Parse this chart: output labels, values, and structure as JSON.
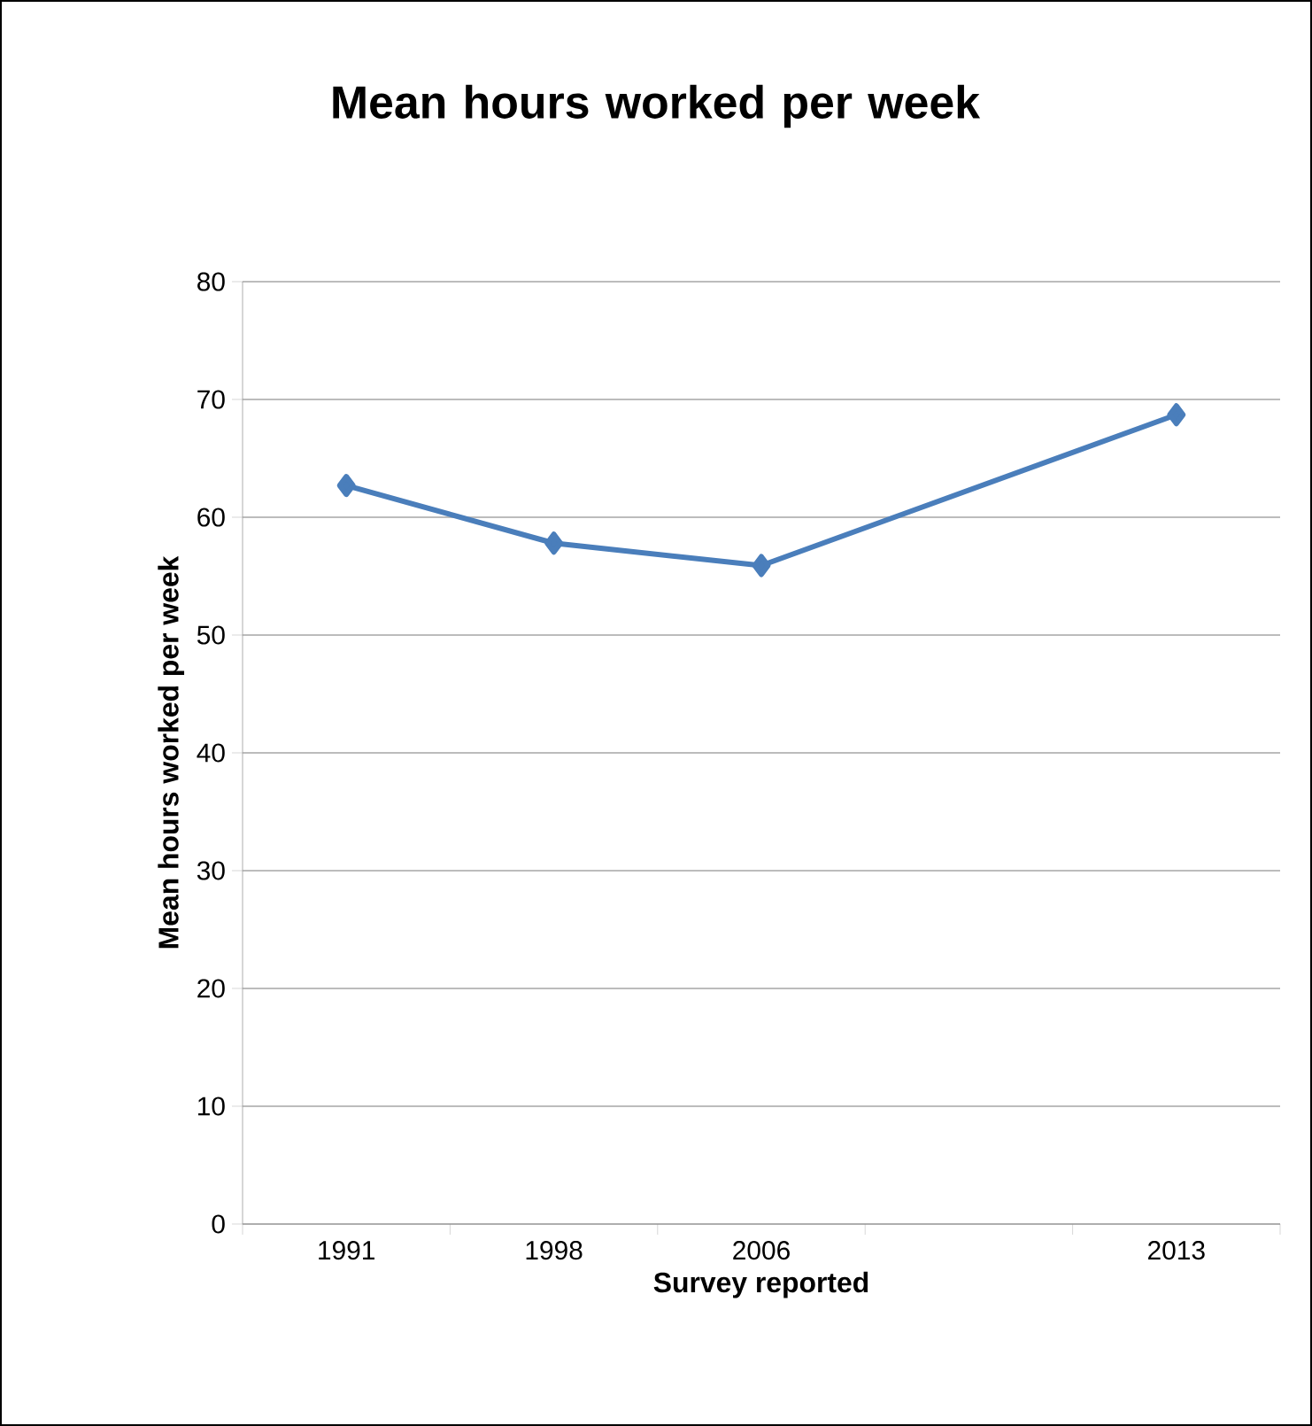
{
  "chart_data": {
    "type": "line",
    "title": "Mean hours worked per week",
    "xlabel": "Survey reported",
    "ylabel": "Mean hours worked per week",
    "categories": [
      "1991",
      "1998",
      "2006",
      null,
      "2013"
    ],
    "series": [
      {
        "color": "#4a7ebb",
        "values": [
          62.7,
          57.8,
          55.9,
          null,
          68.7
        ]
      }
    ],
    "ylim": [
      0,
      80
    ],
    "yticks": [
      0,
      10,
      20,
      30,
      40,
      50,
      60,
      70,
      80
    ],
    "grid": "y",
    "marker": "diamond",
    "line_style": "solid"
  }
}
